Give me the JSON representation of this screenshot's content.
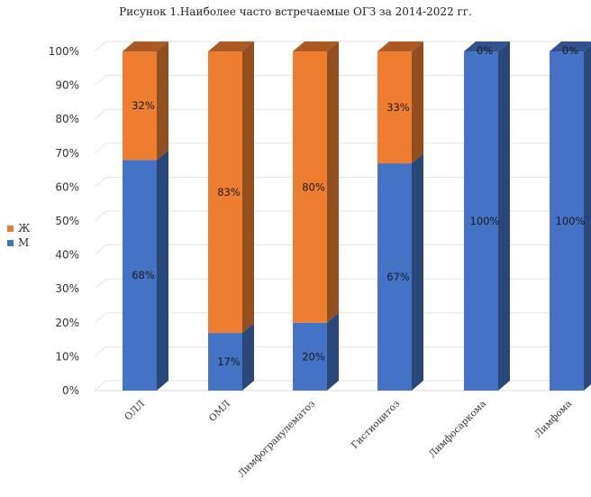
{
  "chart_data": {
    "type": "bar",
    "stacked": true,
    "percent_stacked": true,
    "three_d": true,
    "title": "Рисунок 1.Наиболее часто встречаемые ОГЗ за 2014-2022 гг.",
    "categories": [
      "ОЛЛ",
      "ОМЛ",
      "Лимфогранулематоз",
      "Гистиоцитоз",
      "Лимфосаркома",
      "Лимфома"
    ],
    "series": [
      {
        "name": "М",
        "color": "#4472C4",
        "values": [
          68,
          17,
          20,
          67,
          100,
          100
        ],
        "labels": [
          "68%",
          "17%",
          "20%",
          "67%",
          "100%",
          "100%"
        ]
      },
      {
        "name": "Ж",
        "color": "#ED7D31",
        "values": [
          32,
          83,
          80,
          33,
          0,
          0
        ],
        "labels": [
          "32%",
          "83%",
          "80%",
          "33%",
          "0%",
          "0%"
        ]
      }
    ],
    "y_ticks": [
      "0%",
      "10%",
      "20%",
      "30%",
      "40%",
      "50%",
      "60%",
      "70%",
      "80%",
      "90%",
      "100%"
    ],
    "ylim": [
      0,
      100
    ],
    "grid": true,
    "legend_position": "left"
  }
}
